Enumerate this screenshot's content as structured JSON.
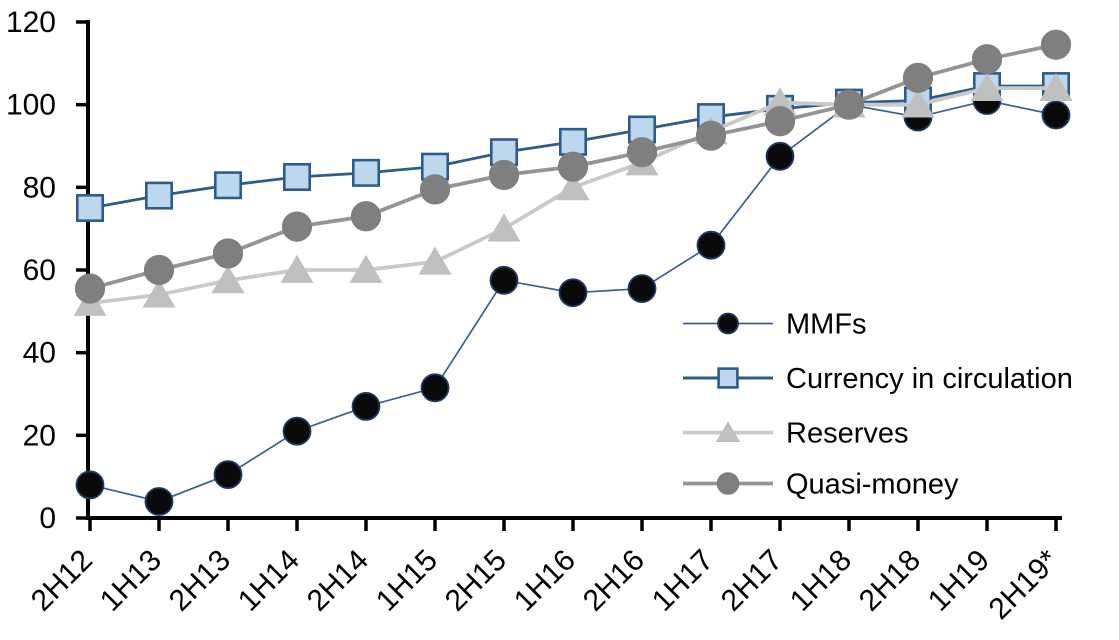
{
  "chart_data": {
    "type": "line",
    "categories": [
      "2H12",
      "1H13",
      "2H13",
      "1H14",
      "2H14",
      "1H15",
      "2H15",
      "1H16",
      "2H16",
      "1H17",
      "2H17",
      "1H18",
      "2H18",
      "1H19",
      "2H19*"
    ],
    "series": [
      {
        "name": "MMFs",
        "marker": "circle",
        "marker_fill": "#0a0a0a",
        "marker_stroke": "#1f3864",
        "line_color": "#3a5f94",
        "values": [
          8,
          4,
          10.5,
          21,
          27,
          31.5,
          57.5,
          54.5,
          55.5,
          66,
          87.5,
          100,
          97,
          101,
          97.5
        ]
      },
      {
        "name": "Currency in circulation",
        "marker": "square",
        "marker_fill": "#bdd7ee",
        "marker_stroke": "#2e5c8a",
        "line_color": "#2e5c8a",
        "values": [
          75,
          78,
          80.5,
          82.5,
          83.5,
          85,
          88.5,
          91,
          94,
          97,
          99,
          100.5,
          101,
          104.5,
          104.5
        ]
      },
      {
        "name": "Reserves",
        "marker": "triangle",
        "marker_fill": "#bfbfbf",
        "marker_stroke": "#bfbfbf",
        "line_color": "#c9c9c9",
        "values": [
          52,
          54,
          57.5,
          60,
          60,
          62,
          70,
          80,
          86,
          93.5,
          100.5,
          100,
          100,
          104,
          104
        ]
      },
      {
        "name": "Quasi-money",
        "marker": "circle",
        "marker_fill": "#7f7f7f",
        "marker_stroke": "#7f7f7f",
        "line_color": "#949494",
        "values": [
          55.5,
          60,
          64,
          70.5,
          73,
          79.5,
          83,
          85,
          88.5,
          92.5,
          96,
          100,
          106.5,
          111,
          114.5
        ]
      }
    ],
    "ylim": [
      0,
      120
    ],
    "y_ticks": [
      0,
      20,
      40,
      60,
      80,
      100,
      120
    ],
    "grid": "off",
    "legend_position": "inside-right",
    "axis_color": "#000000",
    "background_color": "#ffffff"
  }
}
